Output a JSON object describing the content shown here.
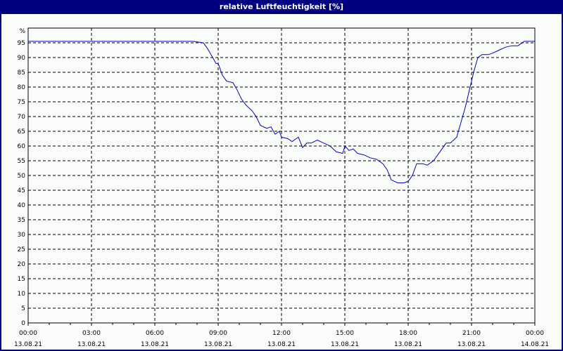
{
  "window": {
    "title": "relative Luftfeuchtigkeit [%]"
  },
  "colors": {
    "header_bg": "#000080",
    "plot_bg": "#fbfdfb",
    "line": "#0000cc",
    "grid": "#000000"
  },
  "chart_data": {
    "type": "line",
    "title": "relative Luftfeuchtigkeit [%]",
    "xlabel": "",
    "ylabel": "%",
    "ylim": [
      0,
      100
    ],
    "yticks": [
      0,
      5,
      10,
      15,
      20,
      25,
      30,
      35,
      40,
      45,
      50,
      55,
      60,
      65,
      70,
      75,
      80,
      85,
      90,
      95
    ],
    "xticks": [
      {
        "time": "00:00",
        "date": "13.08.21"
      },
      {
        "time": "03:00",
        "date": "13.08.21"
      },
      {
        "time": "06:00",
        "date": "13.08.21"
      },
      {
        "time": "09:00",
        "date": "13.08.21"
      },
      {
        "time": "12:00",
        "date": "13.08.21"
      },
      {
        "time": "15:00",
        "date": "13.08.21"
      },
      {
        "time": "18:00",
        "date": "13.08.21"
      },
      {
        "time": "21:00",
        "date": "13.08.21"
      },
      {
        "time": "00:00",
        "date": "14.08.21"
      }
    ],
    "grid": true,
    "series": [
      {
        "name": "relative Luftfeuchtigkeit",
        "x_hours": [
          0,
          7.8,
          8.3,
          8.5,
          8.7,
          8.9,
          9.0,
          9.2,
          9.4,
          9.7,
          9.9,
          10.1,
          10.3,
          10.6,
          10.8,
          11.0,
          11.3,
          11.5,
          11.7,
          11.9,
          12.0,
          12.3,
          12.5,
          12.8,
          13.0,
          13.2,
          13.4,
          13.7,
          14.0,
          14.3,
          14.6,
          14.9,
          15.0,
          15.2,
          15.4,
          15.6,
          15.9,
          16.2,
          16.5,
          16.8,
          17.0,
          17.2,
          17.5,
          17.8,
          18.0,
          18.2,
          18.4,
          18.7,
          18.9,
          19.2,
          19.5,
          19.8,
          20.0,
          20.3,
          20.5,
          20.7,
          20.9,
          21.1,
          21.3,
          21.5,
          21.8,
          22.0,
          22.3,
          22.6,
          22.9,
          23.2,
          23.5,
          24.0
        ],
        "values": [
          95.5,
          95.5,
          95,
          93,
          90.5,
          88,
          88,
          84,
          82,
          81.5,
          79,
          76,
          74,
          72,
          70,
          67,
          66,
          66.5,
          64,
          65,
          63,
          62.5,
          61.5,
          63,
          59.5,
          61,
          61,
          62,
          61,
          60,
          58,
          57.5,
          60,
          58.5,
          59,
          57.5,
          57,
          56,
          55.5,
          54,
          52,
          48.5,
          47.5,
          47.5,
          48,
          50,
          54,
          54,
          53.5,
          55,
          58,
          61,
          61,
          63,
          68,
          73,
          79,
          85,
          90,
          91,
          91,
          91.5,
          92.5,
          93.5,
          94,
          94,
          95.5,
          95.5
        ]
      }
    ]
  }
}
